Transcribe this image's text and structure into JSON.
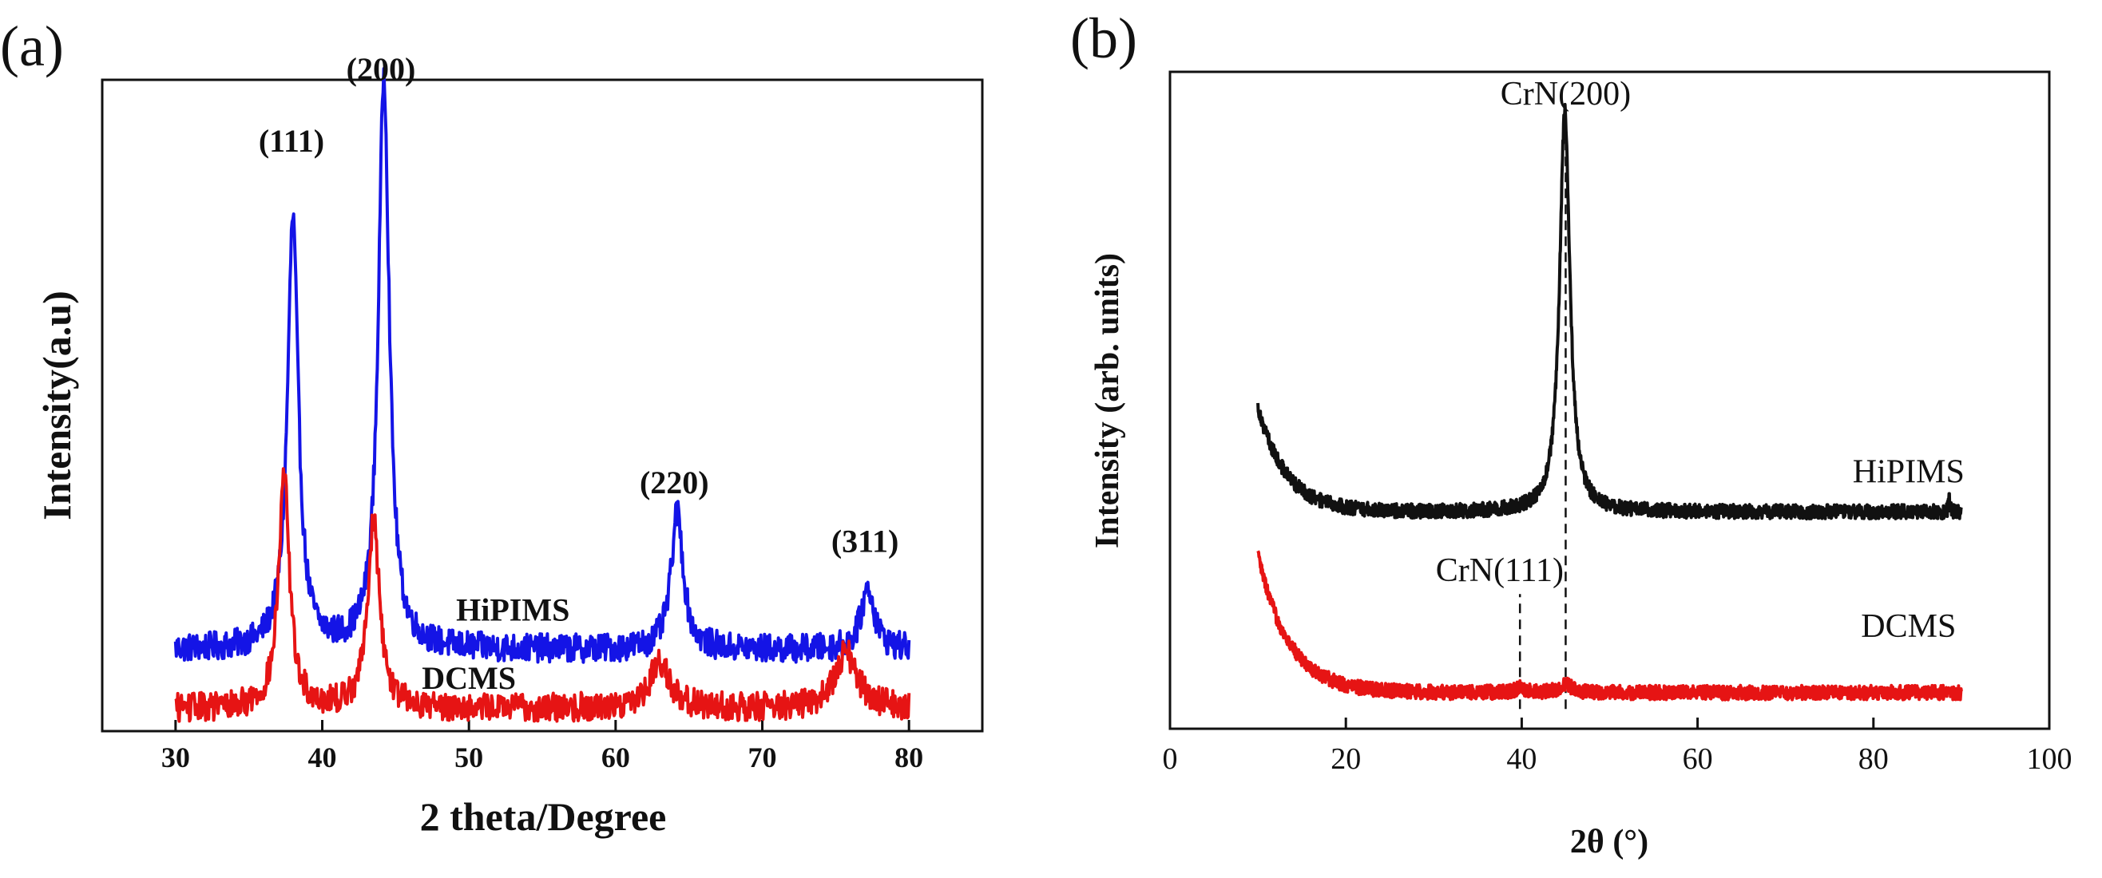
{
  "chart_data": [
    {
      "panel_label": "(a)",
      "type": "line",
      "title": "",
      "xlabel": "2 theta/Degree",
      "ylabel": "Intensity(a.u)",
      "xlim": [
        25,
        85
      ],
      "ylim": [
        0,
        1
      ],
      "xticks": [
        30,
        40,
        50,
        60,
        70,
        80
      ],
      "x_tick_labels": [
        "30",
        "40",
        "50",
        "60",
        "70",
        "80"
      ],
      "y_tick_labels": [],
      "grid": false,
      "series": [
        {
          "name": "HiPIMS",
          "color": "#1414e6",
          "x_range": [
            30,
            80
          ],
          "baseline": 0.125,
          "peaks": [
            {
              "x": 38.0,
              "height": 0.66,
              "width": 0.45
            },
            {
              "x": 44.2,
              "height": 0.88,
              "width": 0.45
            },
            {
              "x": 64.2,
              "height": 0.21,
              "width": 0.5
            },
            {
              "x": 77.2,
              "height": 0.095,
              "width": 0.55
            }
          ]
        },
        {
          "name": "DCMS",
          "color": "#e61414",
          "x_range": [
            30,
            80
          ],
          "baseline": 0.035,
          "peaks": [
            {
              "x": 37.4,
              "height": 0.355,
              "width": 0.45
            },
            {
              "x": 43.5,
              "height": 0.285,
              "width": 0.5
            },
            {
              "x": 63.0,
              "height": 0.07,
              "width": 0.85
            },
            {
              "x": 75.7,
              "height": 0.085,
              "width": 0.9
            }
          ]
        }
      ],
      "annotations": [
        {
          "text": "(111)",
          "x": 37.9,
          "y": 0.89
        },
        {
          "text": "(200)",
          "x": 44.0,
          "y": 1.0
        },
        {
          "text": "(220)",
          "x": 64.0,
          "y": 0.365
        },
        {
          "text": "(311)",
          "x": 77.0,
          "y": 0.275
        },
        {
          "text": "HiPIMS",
          "x": 53.0,
          "y": 0.17
        },
        {
          "text": "DCMS",
          "x": 50.0,
          "y": 0.065
        }
      ]
    },
    {
      "panel_label": "(b)",
      "type": "line",
      "title": "",
      "xlabel": "2θ (°)",
      "ylabel": "Intensity (arb. units)",
      "xlim": [
        0,
        100
      ],
      "ylim": [
        0,
        1
      ],
      "xticks": [
        0,
        20,
        40,
        60,
        80,
        100
      ],
      "x_tick_labels": [
        "0",
        "20",
        "40",
        "60",
        "80",
        "100"
      ],
      "y_tick_labels": [],
      "grid": false,
      "series": [
        {
          "name": "HiPIMS",
          "color": "#111111",
          "x_range": [
            10,
            90
          ],
          "baseline": 0.33,
          "start_level": 0.49,
          "decay": 3.2,
          "peaks": [
            {
              "x": 44.9,
              "height": 0.61,
              "width": 0.7
            },
            {
              "x": 88.6,
              "height": 0.02,
              "width": 0.1
            }
          ]
        },
        {
          "name": "DCMS",
          "color": "#e61414",
          "x_range": [
            10,
            90
          ],
          "baseline": 0.055,
          "start_level": 0.265,
          "decay": 3.5,
          "peaks": [
            {
              "x": 39.8,
              "height": 0.008,
              "width": 0.6
            },
            {
              "x": 45.0,
              "height": 0.012,
              "width": 0.9
            }
          ]
        }
      ],
      "reference_lines": [
        {
          "x": 39.8,
          "y_top": 0.205
        },
        {
          "x": 45.0,
          "y_top": 0.94
        }
      ],
      "annotations": [
        {
          "text": "CrN(200)",
          "x": 45.0,
          "y": 0.95
        },
        {
          "text": "CrN(111)",
          "x": 37.5,
          "y": 0.225
        },
        {
          "text": "HiPIMS",
          "x": 84.0,
          "y": 0.375
        },
        {
          "text": "DCMS",
          "x": 84.0,
          "y": 0.14
        }
      ]
    }
  ]
}
